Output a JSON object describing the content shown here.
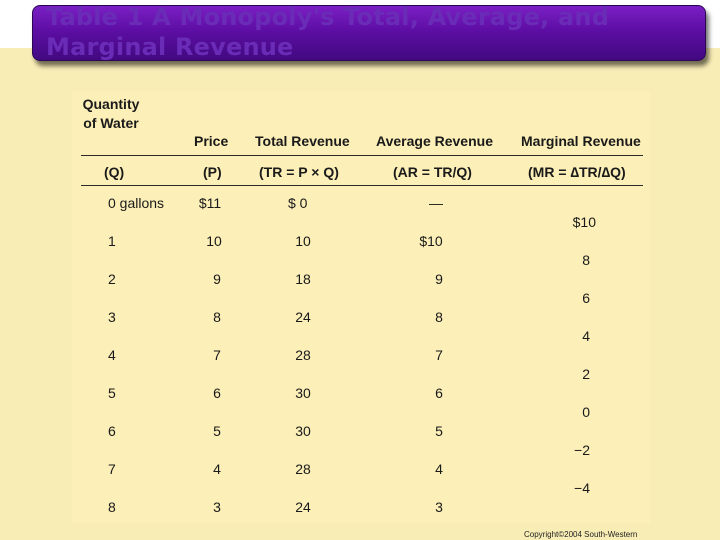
{
  "slide": {
    "title": "Table 1 A Monopoly's Total, Average, and Marginal Revenue",
    "copyright": "Copyright©2004  South-Western"
  },
  "table": {
    "headers": {
      "quantity": "Quantity of Water",
      "price": "Price",
      "total_revenue": "Total Revenue",
      "average_revenue": "Average Revenue",
      "marginal_revenue": "Marginal Revenue"
    },
    "formulas": {
      "quantity": "(Q)",
      "price": "(P)",
      "total_revenue": "(TR = P × Q)",
      "average_revenue": "(AR = TR/Q)",
      "marginal_revenue": "(MR = ∆TR/∆Q)"
    },
    "rows": [
      {
        "q": "0 gallons",
        "p": "$11",
        "tr": "$  0",
        "ar": "—"
      },
      {
        "q": "1",
        "p": "10",
        "tr": "10",
        "ar": "$10"
      },
      {
        "q": "2",
        "p": "9",
        "tr": "18",
        "ar": "9"
      },
      {
        "q": "3",
        "p": "8",
        "tr": "24",
        "ar": "8"
      },
      {
        "q": "4",
        "p": "7",
        "tr": "28",
        "ar": "7"
      },
      {
        "q": "5",
        "p": "6",
        "tr": "30",
        "ar": "6"
      },
      {
        "q": "6",
        "p": "5",
        "tr": "30",
        "ar": "5"
      },
      {
        "q": "7",
        "p": "4",
        "tr": "28",
        "ar": "4"
      },
      {
        "q": "8",
        "p": "3",
        "tr": "24",
        "ar": "3"
      }
    ],
    "marginal": [
      "$10",
      "8",
      "6",
      "4",
      "2",
      "0",
      "−2",
      "−4"
    ]
  }
}
